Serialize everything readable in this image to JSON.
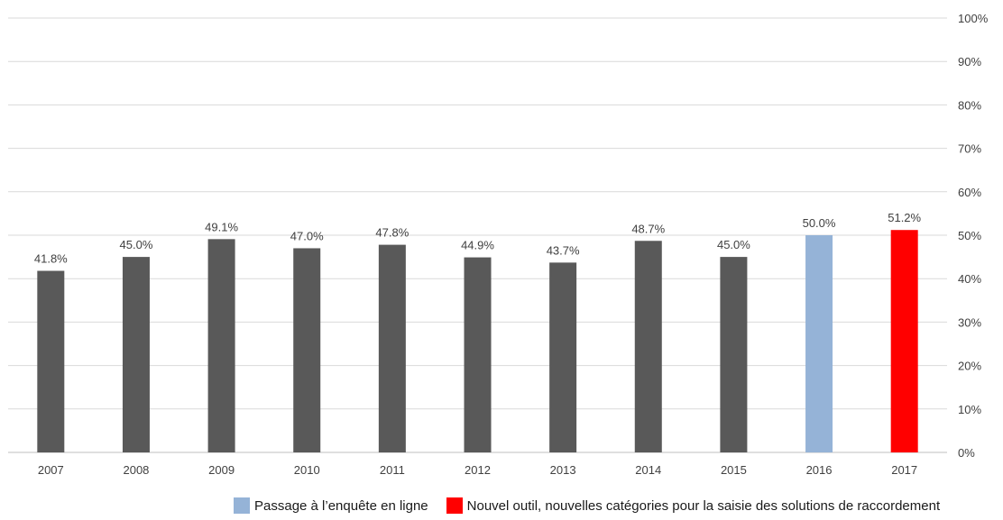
{
  "chart_data": {
    "type": "bar",
    "categories": [
      "2007",
      "2008",
      "2009",
      "2010",
      "2011",
      "2012",
      "2013",
      "2014",
      "2015",
      "2016",
      "2017"
    ],
    "values": [
      41.8,
      45.0,
      49.1,
      47.0,
      47.8,
      44.9,
      43.7,
      48.7,
      45.0,
      50.0,
      51.2
    ],
    "value_labels": [
      "41.8%",
      "45.0%",
      "49.1%",
      "47.0%",
      "47.8%",
      "44.9%",
      "43.7%",
      "48.7%",
      "45.0%",
      "50.0%",
      "51.2%"
    ],
    "bar_colors": [
      "#595959",
      "#595959",
      "#595959",
      "#595959",
      "#595959",
      "#595959",
      "#595959",
      "#595959",
      "#595959",
      "#95b3d7",
      "#ff0000"
    ],
    "ylim": [
      0,
      100
    ],
    "y_ticks": [
      0,
      10,
      20,
      30,
      40,
      50,
      60,
      70,
      80,
      90,
      100
    ],
    "y_tick_labels": [
      "0%",
      "10%",
      "20%",
      "30%",
      "40%",
      "50%",
      "60%",
      "70%",
      "80%",
      "90%",
      "100%"
    ],
    "y_axis_side": "right",
    "grid": true,
    "legend_position": "bottom-right",
    "title": "",
    "xlabel": "",
    "ylabel": ""
  },
  "legend": {
    "items": [
      {
        "label": "Passage à l’enquête en ligne",
        "color": "#95b3d7"
      },
      {
        "label": "Nouvel outil, nouvelles catégories pour la saisie des solutions de raccordement",
        "color": "#ff0000"
      }
    ]
  },
  "colors": {
    "gridline": "#d9d9d9",
    "axis_line": "#bfbfbf",
    "text": "#404040"
  }
}
